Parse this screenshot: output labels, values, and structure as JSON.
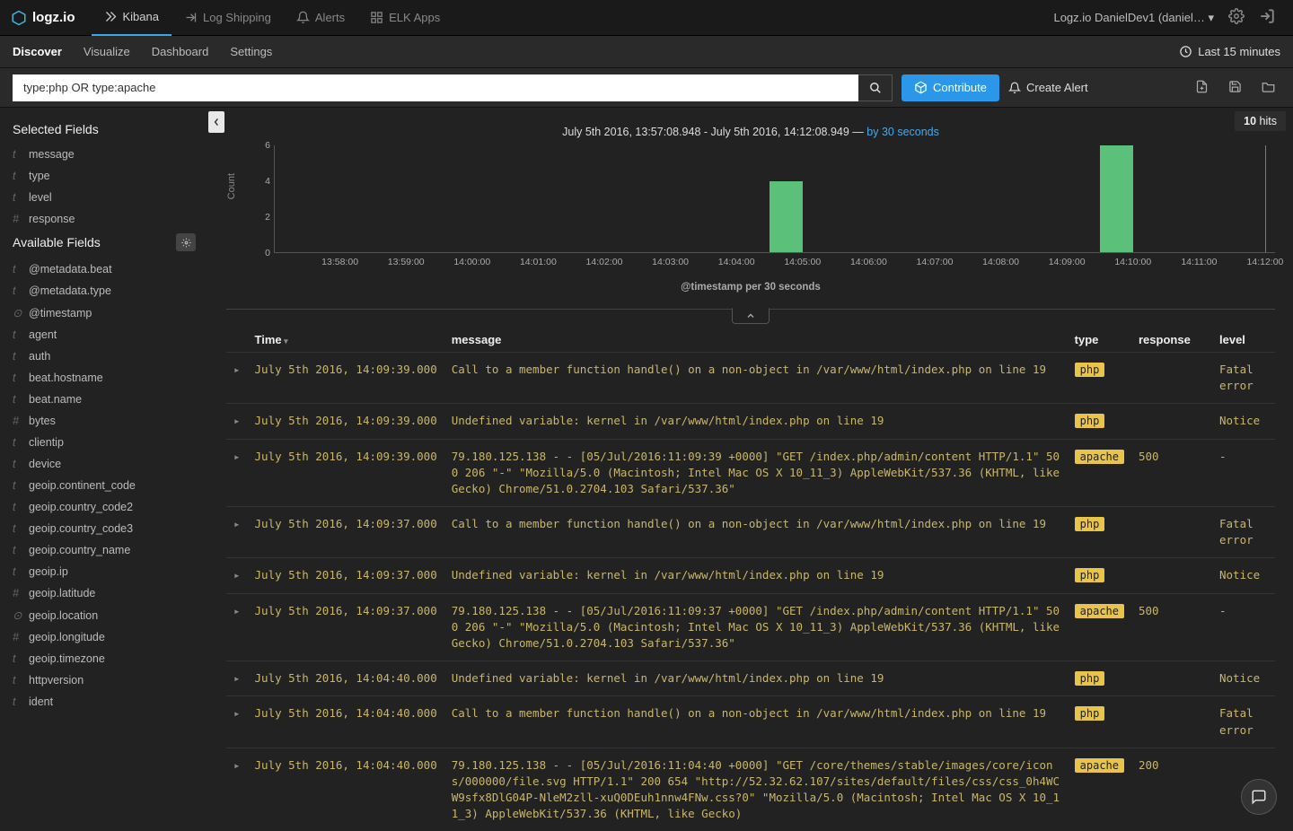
{
  "topnav": {
    "brand": "logz.io",
    "tabs": [
      {
        "label": "Kibana",
        "active": true
      },
      {
        "label": "Log Shipping",
        "active": false
      },
      {
        "label": "Alerts",
        "active": false
      },
      {
        "label": "ELK Apps",
        "active": false
      }
    ],
    "account": "Logz.io DanielDev1 (daniel…"
  },
  "subnav": {
    "tabs": [
      {
        "label": "Discover",
        "active": true
      },
      {
        "label": "Visualize",
        "active": false
      },
      {
        "label": "Dashboard",
        "active": false
      },
      {
        "label": "Settings",
        "active": false
      }
    ],
    "timerange": "Last 15 minutes"
  },
  "search": {
    "query": "type:php OR type:apache",
    "contribute": "Contribute",
    "createAlert": "Create Alert"
  },
  "sidebar": {
    "selectedHeader": "Selected Fields",
    "availableHeader": "Available Fields",
    "selected": [
      {
        "t": "t",
        "name": "message"
      },
      {
        "t": "t",
        "name": "type"
      },
      {
        "t": "t",
        "name": "level"
      },
      {
        "t": "#",
        "name": "response"
      }
    ],
    "available": [
      {
        "t": "t",
        "name": "@metadata.beat"
      },
      {
        "t": "t",
        "name": "@metadata.type"
      },
      {
        "t": "⊙",
        "name": "@timestamp"
      },
      {
        "t": "t",
        "name": "agent"
      },
      {
        "t": "t",
        "name": "auth"
      },
      {
        "t": "t",
        "name": "beat.hostname"
      },
      {
        "t": "t",
        "name": "beat.name"
      },
      {
        "t": "#",
        "name": "bytes"
      },
      {
        "t": "t",
        "name": "clientip"
      },
      {
        "t": "t",
        "name": "device"
      },
      {
        "t": "t",
        "name": "geoip.continent_code"
      },
      {
        "t": "t",
        "name": "geoip.country_code2"
      },
      {
        "t": "t",
        "name": "geoip.country_code3"
      },
      {
        "t": "t",
        "name": "geoip.country_name"
      },
      {
        "t": "t",
        "name": "geoip.ip"
      },
      {
        "t": "#",
        "name": "geoip.latitude"
      },
      {
        "t": "⊙",
        "name": "geoip.location"
      },
      {
        "t": "#",
        "name": "geoip.longitude"
      },
      {
        "t": "t",
        "name": "geoip.timezone"
      },
      {
        "t": "t",
        "name": "httpversion"
      },
      {
        "t": "t",
        "name": "ident"
      }
    ]
  },
  "hits": {
    "count": "10",
    "label": "hits"
  },
  "chart": {
    "title_prefix": "July 5th 2016, 13:57:08.948 - July 5th 2016, 14:12:08.949 — ",
    "interval_label": "by 30 seconds",
    "ylabel": "Count",
    "xlabel": "@timestamp per 30 seconds",
    "ylim": [
      0,
      6
    ],
    "ytick_step": 2,
    "x_start_min": 57,
    "x_end_min": 72.15,
    "xticks": [
      "13:58:00",
      "13:59:00",
      "14:00:00",
      "14:01:00",
      "14:02:00",
      "14:03:00",
      "14:04:00",
      "14:05:00",
      "14:06:00",
      "14:07:00",
      "14:08:00",
      "14:09:00",
      "14:10:00",
      "14:11:00",
      "14:12:00"
    ],
    "bars": [
      {
        "x_min": 64.5,
        "count": 4
      },
      {
        "x_min": 69.5,
        "count": 6
      }
    ],
    "bar_width_min": 0.5,
    "bar_color": "#5bc07a",
    "marker_x_min": 72.0,
    "marker_color": "#d9534f",
    "axis_color": "#555555",
    "background": "#222222",
    "tick_color": "#aaaaaa"
  },
  "table": {
    "columns": [
      "Time",
      "message",
      "type",
      "response",
      "level"
    ],
    "rows": [
      {
        "time": "July 5th 2016, 14:09:39.000",
        "message": "Call to a member function handle() on a non-object in /var/www/html/index.php on line 19",
        "type": "php",
        "response": "",
        "level": "Fatal error"
      },
      {
        "time": "July 5th 2016, 14:09:39.000",
        "message": "Undefined variable: kernel in /var/www/html/index.php on line 19",
        "type": "php",
        "response": "",
        "level": "Notice"
      },
      {
        "time": "July 5th 2016, 14:09:39.000",
        "message": "79.180.125.138 - - [05/Jul/2016:11:09:39 +0000] \"GET /index.php/admin/content HTTP/1.1\" 500 206 \"-\" \"Mozilla/5.0 (Macintosh; Intel Mac OS X 10_11_3) AppleWebKit/537.36 (KHTML, like Gecko) Chrome/51.0.2704.103 Safari/537.36\"",
        "type": "apache",
        "response": "500",
        "level": "-"
      },
      {
        "time": "July 5th 2016, 14:09:37.000",
        "message": "Call to a member function handle() on a non-object in /var/www/html/index.php on line 19",
        "type": "php",
        "response": "",
        "level": "Fatal error"
      },
      {
        "time": "July 5th 2016, 14:09:37.000",
        "message": "Undefined variable: kernel in /var/www/html/index.php on line 19",
        "type": "php",
        "response": "",
        "level": "Notice"
      },
      {
        "time": "July 5th 2016, 14:09:37.000",
        "message": "79.180.125.138 - - [05/Jul/2016:11:09:37 +0000] \"GET /index.php/admin/content HTTP/1.1\" 500 206 \"-\" \"Mozilla/5.0 (Macintosh; Intel Mac OS X 10_11_3) AppleWebKit/537.36 (KHTML, like Gecko) Chrome/51.0.2704.103 Safari/537.36\"",
        "type": "apache",
        "response": "500",
        "level": "-"
      },
      {
        "time": "July 5th 2016, 14:04:40.000",
        "message": "Undefined variable: kernel in /var/www/html/index.php on line 19",
        "type": "php",
        "response": "",
        "level": "Notice"
      },
      {
        "time": "July 5th 2016, 14:04:40.000",
        "message": "Call to a member function handle() on a non-object in /var/www/html/index.php on line 19",
        "type": "php",
        "response": "",
        "level": "Fatal error"
      },
      {
        "time": "July 5th 2016, 14:04:40.000",
        "message": "79.180.125.138 - - [05/Jul/2016:11:04:40 +0000] \"GET /core/themes/stable/images/core/icons/000000/file.svg HTTP/1.1\" 200 654 \"http://52.32.62.107/sites/default/files/css/css_0h4WCW9sfx8DlG04P-NleM2zll-xuQ0DEuh1nnw4FNw.css?0\" \"Mozilla/5.0 (Macintosh; Intel Mac OS X 10_11_3) AppleWebKit/537.36 (KHTML, like Gecko)",
        "type": "apache",
        "response": "200",
        "level": ""
      }
    ],
    "tag_bg": "#e8c54a",
    "tag_fg": "#222222",
    "text_color": "#c9b66c"
  }
}
